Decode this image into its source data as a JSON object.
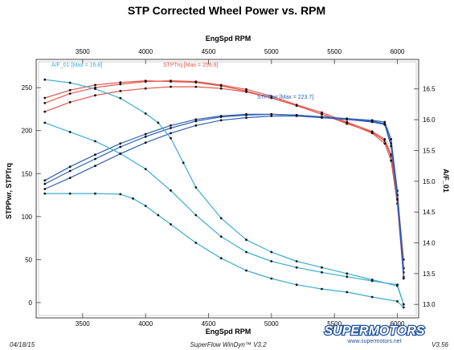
{
  "chart_data": {
    "type": "line",
    "title": "STP Corrected Wheel Power vs. RPM",
    "xlabel_top": "EngSpd  RPM",
    "xlabel_bottom": "EngSpd  RPM",
    "ylabel_left": "STPPwr, STPTrq",
    "ylabel_right": "A/F_01",
    "xlim": [
      3150,
      6150
    ],
    "xticks": [
      3500,
      4000,
      4500,
      5000,
      5500,
      6000
    ],
    "ylim_left": [
      -15,
      280
    ],
    "yticks_left": [
      0,
      50,
      100,
      150,
      200,
      250
    ],
    "ylim_right": [
      12.82,
      16.94
    ],
    "yticks_right": [
      13.0,
      13.5,
      14.0,
      14.5,
      15.0,
      15.5,
      16.0,
      16.5
    ],
    "annotations": {
      "af": "A/F_01 [Max = 16.8]",
      "trq": "STPTrq [Max = 259.9]",
      "pwr": "STPPwr [Max = 223.7]"
    },
    "series": [
      {
        "name": "STPTrq",
        "axis": "left",
        "color": "#e2574c",
        "x": [
          3200,
          3400,
          3600,
          3800,
          4000,
          4200,
          4400,
          4600,
          4800,
          5000,
          5200,
          5400,
          5600,
          5800,
          5900,
          5950,
          6000,
          6050
        ],
        "y": [
          238,
          247,
          253,
          256,
          258,
          257,
          256,
          252,
          246,
          238,
          229,
          219,
          208,
          198,
          188,
          170,
          120,
          40
        ]
      },
      {
        "name": "STPTrq",
        "axis": "left",
        "color": "#e2574c",
        "x": [
          3200,
          3400,
          3600,
          3800,
          4000,
          4200,
          4400,
          4600,
          4800,
          5000,
          5200,
          5400,
          5600,
          5800,
          5900,
          5950,
          6000,
          6050
        ],
        "y": [
          232,
          243,
          250,
          254,
          257,
          258,
          257,
          253,
          248,
          240,
          230,
          221,
          210,
          199,
          190,
          172,
          125,
          50
        ]
      },
      {
        "name": "STPTrq",
        "axis": "left",
        "color": "#e2574c",
        "x": [
          3200,
          3400,
          3600,
          3800,
          4000,
          4200,
          4400,
          4600,
          4800,
          5000,
          5200,
          5400,
          5600,
          5800,
          5900,
          5950,
          6000,
          6050
        ],
        "y": [
          222,
          233,
          241,
          246,
          249,
          251,
          251,
          249,
          245,
          238,
          229,
          219,
          209,
          197,
          185,
          165,
          115,
          30
        ]
      },
      {
        "name": "STPPwr",
        "axis": "left",
        "color": "#2f5fb3",
        "x": [
          3200,
          3400,
          3600,
          3800,
          4000,
          4200,
          4400,
          4600,
          4800,
          5000,
          5200,
          5400,
          5600,
          5800,
          5900,
          5950,
          6000,
          6050
        ],
        "y": [
          142,
          158,
          172,
          185,
          196,
          206,
          213,
          217,
          219,
          219,
          218,
          216,
          214,
          212,
          210,
          190,
          130,
          40
        ]
      },
      {
        "name": "STPPwr",
        "axis": "left",
        "color": "#2f5fb3",
        "x": [
          3200,
          3400,
          3600,
          3800,
          4000,
          4200,
          4400,
          4600,
          4800,
          5000,
          5200,
          5400,
          5600,
          5800,
          5900,
          5950,
          6000,
          6050
        ],
        "y": [
          138,
          153,
          167,
          181,
          193,
          203,
          211,
          216,
          218,
          219,
          218,
          216,
          213,
          211,
          208,
          185,
          125,
          35
        ]
      },
      {
        "name": "STPPwr",
        "axis": "left",
        "color": "#2f5fb3",
        "x": [
          3200,
          3400,
          3600,
          3800,
          4000,
          4200,
          4400,
          4600,
          4800,
          5000,
          5200,
          5400,
          5600,
          5800,
          5900,
          5950,
          6000,
          6050
        ],
        "y": [
          132,
          145,
          159,
          173,
          186,
          197,
          206,
          212,
          215,
          217,
          217,
          215,
          213,
          210,
          207,
          182,
          120,
          28
        ]
      },
      {
        "name": "A/F_01",
        "axis": "right",
        "color": "#3aaed0",
        "x": [
          3200,
          3400,
          3600,
          3800,
          4000,
          4100,
          4200,
          4300,
          4400,
          4600,
          4800,
          5000,
          5200,
          5400,
          5600,
          5800,
          6000,
          6050
        ],
        "y": [
          16.65,
          16.6,
          16.5,
          16.35,
          16.1,
          15.95,
          15.7,
          15.3,
          14.9,
          14.4,
          14.05,
          13.85,
          13.7,
          13.6,
          13.5,
          13.4,
          13.3,
          13.0
        ]
      },
      {
        "name": "A/F_01",
        "axis": "right",
        "color": "#3aaed0",
        "x": [
          3200,
          3400,
          3600,
          3800,
          4000,
          4200,
          4400,
          4600,
          4800,
          5000,
          5200,
          5400,
          5600,
          5800,
          6000,
          6050
        ],
        "y": [
          15.95,
          15.8,
          15.65,
          15.45,
          15.2,
          14.85,
          14.45,
          14.1,
          13.85,
          13.7,
          13.6,
          13.52,
          13.45,
          13.38,
          13.32,
          13.0
        ]
      },
      {
        "name": "A/F_01",
        "axis": "right",
        "color": "#3aaed0",
        "x": [
          3200,
          3400,
          3600,
          3800,
          3900,
          4000,
          4100,
          4200,
          4400,
          4600,
          4800,
          5000,
          5200,
          5400,
          5600,
          5800,
          6000,
          6050
        ],
        "y": [
          14.8,
          14.8,
          14.8,
          14.79,
          14.72,
          14.6,
          14.45,
          14.3,
          14.0,
          13.75,
          13.55,
          13.42,
          13.32,
          13.25,
          13.2,
          13.12,
          13.05,
          12.95
        ]
      }
    ]
  },
  "footer": {
    "date": "04/18/15",
    "software": "SuperFlow WinDyn™ V3.2",
    "version": "V3.56",
    "brand": "SUPERMOTORS",
    "url": "www.supermotors.net"
  }
}
